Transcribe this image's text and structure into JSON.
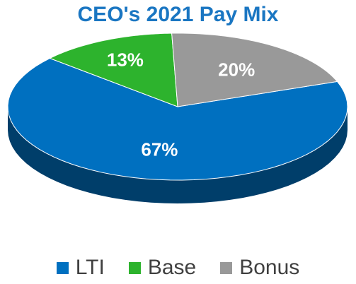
{
  "chart_data": {
    "type": "pie",
    "title": "CEO's 2021 Pay Mix",
    "three_d": true,
    "legend_position": "bottom",
    "slices": [
      {
        "label": "LTI",
        "value": 67,
        "display": "67%",
        "color": "#0070c0"
      },
      {
        "label": "Base",
        "value": 13,
        "display": "13%",
        "color": "#2db32d"
      },
      {
        "label": "Bonus",
        "value": 20,
        "display": "20%",
        "color": "#999999"
      }
    ]
  },
  "colors": {
    "title": "#1a76c2",
    "label": "#ffffff",
    "legend_text": "#404040"
  }
}
